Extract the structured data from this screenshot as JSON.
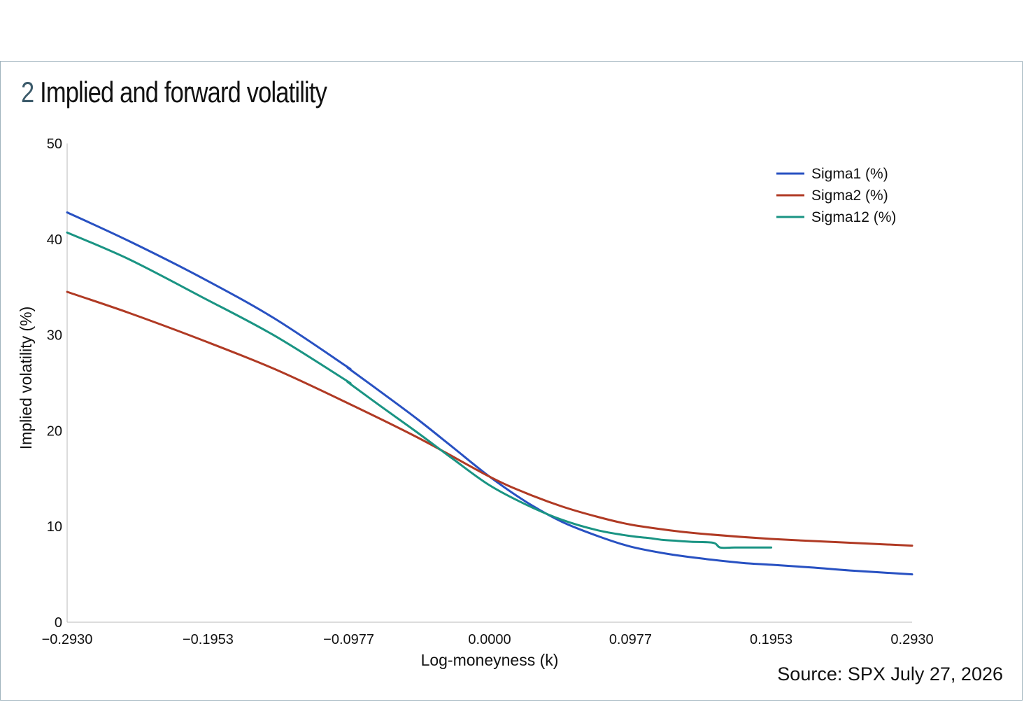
{
  "figure": {
    "number": "2",
    "title": "Implied and forward volatility",
    "source": "Source: SPX July 27, 2026"
  },
  "chart_data": {
    "type": "line",
    "xlabel": "Log-moneyness (k)",
    "ylabel": "Implied volatility (%)",
    "xlim": [
      -0.293,
      0.293
    ],
    "ylim": [
      0,
      50
    ],
    "xticks": [
      "−0.2930",
      "−0.1953",
      "−0.0977",
      "0.0000",
      "0.0977",
      "0.1953",
      "0.2930"
    ],
    "xtick_values": [
      -0.293,
      -0.1953,
      -0.0977,
      0.0,
      0.0977,
      0.1953,
      0.293
    ],
    "yticks": [
      "0",
      "10",
      "20",
      "30",
      "40",
      "50"
    ],
    "ytick_values": [
      0,
      10,
      20,
      30,
      40,
      50
    ],
    "grid": false,
    "legend_position": "top-right",
    "series": [
      {
        "name": "Sigma1 (%)",
        "color": "#2851c2",
        "x": [
          -0.293,
          -0.25,
          -0.2,
          -0.15,
          -0.1,
          -0.05,
          -0.0977,
          -0.075,
          -0.05,
          -0.025,
          0.0,
          0.025,
          0.05,
          0.075,
          0.0977,
          0.125,
          0.15,
          0.175,
          0.1953,
          0.225,
          0.25,
          0.293
        ],
        "y": [
          42.8,
          39.8,
          36.0,
          31.8,
          26.8,
          21.2,
          26.5,
          24.0,
          21.2,
          18.2,
          15.2,
          12.6,
          10.5,
          9.0,
          7.9,
          7.1,
          6.6,
          6.2,
          6.0,
          5.7,
          5.4,
          5.0
        ]
      },
      {
        "name": "Sigma2 (%)",
        "color": "#b03a24",
        "x": [
          -0.293,
          -0.25,
          -0.2,
          -0.15,
          -0.1,
          -0.05,
          0.0,
          0.025,
          0.05,
          0.075,
          0.0977,
          0.125,
          0.15,
          0.1953,
          0.25,
          0.293
        ],
        "y": [
          34.5,
          32.3,
          29.5,
          26.5,
          23.0,
          19.3,
          15.2,
          13.5,
          12.1,
          11.0,
          10.2,
          9.6,
          9.2,
          8.7,
          8.3,
          8.0
        ]
      },
      {
        "name": "Sigma12 (%)",
        "color": "#1a9483",
        "x": [
          -0.293,
          -0.25,
          -0.2,
          -0.15,
          -0.1,
          -0.05,
          -0.0977,
          -0.075,
          -0.05,
          -0.025,
          0.0,
          0.025,
          0.05,
          0.075,
          0.0977,
          0.11,
          0.12,
          0.13,
          0.14,
          0.155,
          0.16,
          0.17,
          0.18,
          0.1953
        ],
        "y": [
          40.7,
          37.9,
          34.0,
          30.0,
          25.3,
          20.0,
          25.0,
          22.5,
          19.8,
          17.0,
          14.3,
          12.3,
          10.7,
          9.6,
          9.0,
          8.8,
          8.6,
          8.5,
          8.4,
          8.3,
          7.8,
          7.8,
          7.8,
          7.8
        ]
      }
    ]
  }
}
